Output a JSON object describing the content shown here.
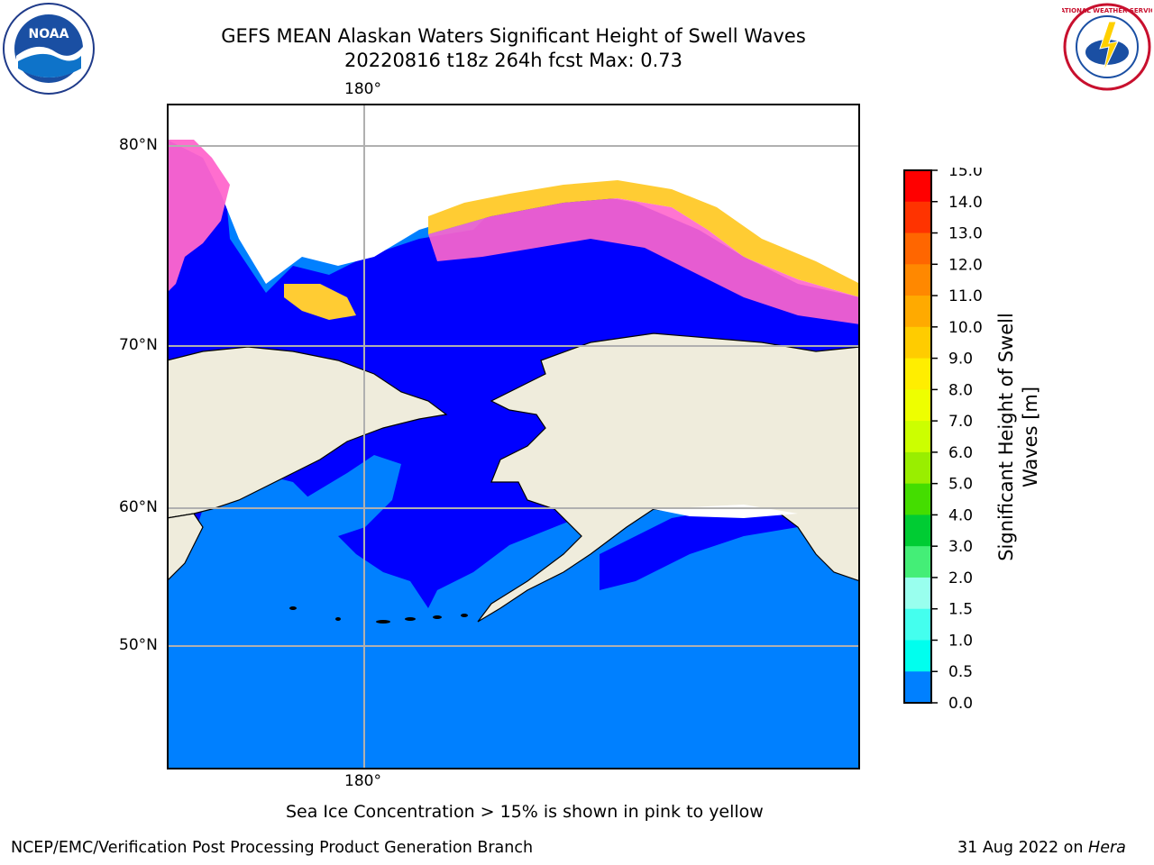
{
  "title": {
    "line1": "GEFS MEAN Alaskan Waters Significant Height of Swell Waves",
    "line2": "20220816 t18z 264h fcst   Max: 0.73"
  },
  "map": {
    "lon_label_top": "180°",
    "lon_label_bottom": "180°",
    "lat_labels": [
      "80°N",
      "70°N",
      "60°N",
      "50°N"
    ],
    "colors": {
      "land": "#efecdc",
      "ocean_low": "#0000ff",
      "ocean_mid": "#0080ff",
      "ice_pink": "#ff66cc",
      "ice_yellow": "#ffcc33",
      "ice_free": "#ffffff",
      "grid": "#b0b0b0"
    }
  },
  "colorbar": {
    "ticks": [
      "15.0",
      "14.0",
      "13.0",
      "12.0",
      "11.0",
      "10.0",
      "9.0",
      "8.0",
      "7.0",
      "6.0",
      "5.0",
      "4.0",
      "3.0",
      "2.0",
      "1.5",
      "1.0",
      "0.5",
      "0.0"
    ],
    "colors": [
      "#ff0000",
      "#ff3300",
      "#ff6600",
      "#ff8800",
      "#ffaa00",
      "#ffcc00",
      "#ffee00",
      "#eeff00",
      "#ccff00",
      "#99ee00",
      "#44dd00",
      "#00cc33",
      "#44ee77",
      "#99ffee",
      "#44ffee",
      "#00ffee",
      "#0080ff",
      "#0000ff"
    ],
    "label_line1": "Significant Height of Swell",
    "label_line2": "Waves [m]"
  },
  "footer": {
    "ice_note": "Sea Ice Concentration > 15% is shown in pink to yellow",
    "branch": "NCEP/EMC/Verification Post Processing Product Generation Branch",
    "date": "31 Aug 2022 on ",
    "machine": "Hera"
  },
  "logos": {
    "left": {
      "name": "noaa-logo",
      "text": "NOAA"
    },
    "right": {
      "name": "nws-logo",
      "text": "NATIONAL WEATHER SERVICE"
    }
  }
}
